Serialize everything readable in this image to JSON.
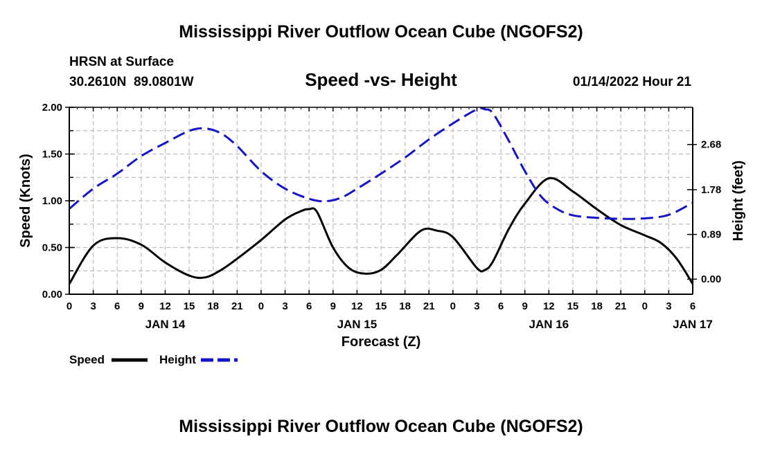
{
  "chart_data": {
    "type": "line",
    "title": "Mississippi River Outflow Ocean Cube (NGOFS2)",
    "footer_title": "Mississippi River Outflow Ocean Cube (NGOFS2)",
    "subtitle": "Speed -vs- Height",
    "station": "HRSN at Surface",
    "location": "30.2610N  89.0801W",
    "datetime": "01/14/2022 Hour 21",
    "xlabel": "Forecast (Z)",
    "ylabel_left": "Speed (Knots)",
    "ylabel_right": "Height (feet)",
    "x_tick_labels": [
      "0",
      "3",
      "6",
      "9",
      "12",
      "15",
      "18",
      "21",
      "0",
      "3",
      "6",
      "9",
      "12",
      "15",
      "18",
      "21",
      "0",
      "3",
      "6",
      "9",
      "12",
      "15",
      "18",
      "21",
      "0",
      "3",
      "6"
    ],
    "date_labels": [
      {
        "label": "JAN 14",
        "hour": 12
      },
      {
        "label": "JAN 15",
        "hour": 36
      },
      {
        "label": "JAN 16",
        "hour": 60
      },
      {
        "label": "JAN 17",
        "hour": 78
      }
    ],
    "xlim": [
      0,
      78
    ],
    "ylim_left": [
      0,
      2.0
    ],
    "left_ticks": [
      {
        "value": 0.0,
        "label": "0.00"
      },
      {
        "value": 0.5,
        "label": "0.50"
      },
      {
        "value": 1.0,
        "label": "1.00"
      },
      {
        "value": 1.5,
        "label": "1.50"
      },
      {
        "value": 2.0,
        "label": "2.00"
      }
    ],
    "ylim_right": [
      -0.3,
      3.42
    ],
    "right_ticks": [
      {
        "value": 0.0,
        "label": "0.00"
      },
      {
        "value": 0.89,
        "label": "0.89"
      },
      {
        "value": 1.78,
        "label": "1.78"
      },
      {
        "value": 2.68,
        "label": "2.68"
      }
    ],
    "series": [
      {
        "name": "Speed",
        "axis": "left",
        "color": "#000000",
        "style": "solid",
        "x": [
          0,
          3,
          6,
          9,
          12,
          15,
          17,
          19,
          21,
          24,
          27,
          29,
          30,
          31,
          33,
          35,
          37,
          39,
          41,
          44,
          46,
          48,
          51,
          52,
          53,
          55,
          57,
          60,
          63,
          66,
          69,
          72,
          74,
          76,
          78
        ],
        "y": [
          0.11,
          0.52,
          0.6,
          0.53,
          0.34,
          0.2,
          0.18,
          0.26,
          0.38,
          0.58,
          0.8,
          0.89,
          0.91,
          0.88,
          0.5,
          0.28,
          0.22,
          0.26,
          0.42,
          0.68,
          0.68,
          0.61,
          0.28,
          0.26,
          0.35,
          0.7,
          0.97,
          1.24,
          1.1,
          0.91,
          0.74,
          0.63,
          0.55,
          0.38,
          0.11
        ]
      },
      {
        "name": "Height",
        "axis": "right",
        "color": "#1414c8",
        "style": "dashed",
        "x": [
          0,
          3,
          6,
          9,
          12,
          15,
          17,
          19,
          21,
          24,
          27,
          30,
          32,
          34,
          36,
          39,
          42,
          45,
          48,
          51,
          52,
          53,
          55,
          57,
          59,
          61,
          63,
          66,
          69,
          72,
          75,
          78
        ],
        "y": [
          1.4,
          1.8,
          2.1,
          2.45,
          2.71,
          2.95,
          3.0,
          2.9,
          2.65,
          2.15,
          1.8,
          1.6,
          1.55,
          1.62,
          1.8,
          2.1,
          2.42,
          2.78,
          3.1,
          3.38,
          3.38,
          3.3,
          2.75,
          2.15,
          1.65,
          1.4,
          1.27,
          1.22,
          1.2,
          1.21,
          1.28,
          1.52
        ]
      }
    ]
  }
}
